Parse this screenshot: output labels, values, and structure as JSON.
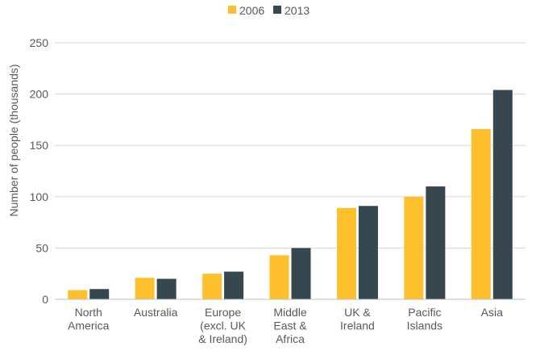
{
  "chart_data": {
    "type": "bar",
    "title": "",
    "xlabel": "",
    "ylabel": "Number of people (thousands)",
    "ylim": [
      0,
      250
    ],
    "yticks": [
      0,
      50,
      100,
      150,
      200,
      250
    ],
    "grid": true,
    "legend_position": "top-center",
    "categories": [
      [
        "North",
        "America"
      ],
      [
        "Australia"
      ],
      [
        "Europe",
        "(excl. UK",
        "& Ireland)"
      ],
      [
        "Middle",
        "East &",
        "Africa"
      ],
      [
        "UK &",
        "Ireland"
      ],
      [
        "Pacific",
        "Islands"
      ],
      [
        "Asia"
      ]
    ],
    "series": [
      {
        "name": "2006",
        "color": "#FFC02E",
        "values": [
          9,
          21,
          25,
          43,
          89,
          100,
          166
        ]
      },
      {
        "name": "2013",
        "color": "#36474F",
        "values": [
          10,
          20,
          27,
          50,
          91,
          110,
          204
        ]
      }
    ]
  }
}
